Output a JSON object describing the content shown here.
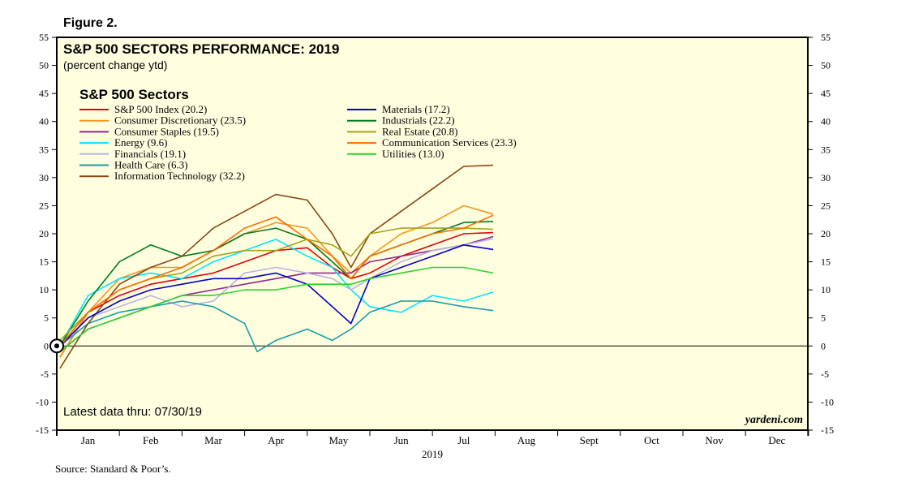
{
  "figure_label": "Figure 2.",
  "source": "Source: Standard & Poor’s.",
  "chart_data": {
    "type": "line",
    "title": "S&P 500 SECTORS PERFORMANCE: 2019",
    "subtitle": "(percent change ytd)",
    "legend_title": "S&P 500 Sectors",
    "latest_note": "Latest data thru: 07/30/19",
    "watermark": "yardeni.com",
    "xlabel": "2019",
    "x_tick_labels": [
      "Jan",
      "Feb",
      "Mar",
      "Apr",
      "May",
      "Jun",
      "Jul",
      "Aug",
      "Sept",
      "Oct",
      "Nov",
      "Dec"
    ],
    "x_range_months": [
      0,
      12
    ],
    "ylim": [
      -15,
      55
    ],
    "y_ticks": [
      -15,
      -10,
      -5,
      0,
      5,
      10,
      15,
      20,
      25,
      30,
      35,
      40,
      45,
      50,
      55
    ],
    "y_tick_labels": [
      "-15",
      "-10",
      "-5",
      "0",
      "5",
      "10",
      "15",
      "20",
      "25",
      "30",
      "35",
      "40",
      "45",
      "50",
      "55"
    ],
    "grid": false,
    "zero_line": true,
    "legend_position": "top-left",
    "plot_background": "#ffffe0",
    "x_unit_note": "x values are months elapsed since Jan 1, 2019",
    "series": [
      {
        "name": "S&P 500 Index (20.2)",
        "color": "#e3000f",
        "x": [
          0.05,
          0.5,
          1.0,
          1.5,
          2.0,
          2.5,
          3.0,
          3.5,
          4.0,
          4.4,
          4.7,
          5.0,
          5.5,
          6.0,
          6.5,
          6.97
        ],
        "y": [
          -2,
          6,
          9,
          11,
          12,
          13,
          15,
          17,
          17.5,
          14,
          12,
          13,
          16,
          18,
          20,
          20.2
        ]
      },
      {
        "name": "Consumer Discretionary (23.5)",
        "color": "#f7941d",
        "x": [
          0.05,
          0.5,
          1.0,
          1.5,
          2.0,
          2.5,
          3.0,
          3.5,
          4.0,
          4.4,
          4.7,
          5.0,
          5.5,
          6.0,
          6.5,
          6.97
        ],
        "y": [
          -2,
          6,
          12,
          14,
          14,
          17,
          20,
          22,
          21,
          16,
          13,
          16,
          20,
          22,
          25,
          23.5
        ]
      },
      {
        "name": "Consumer Staples (19.5)",
        "color": "#92278f",
        "x": [
          0.05,
          0.5,
          1.0,
          1.5,
          2.0,
          2.5,
          3.0,
          3.5,
          4.0,
          4.4,
          4.7,
          5.0,
          5.5,
          6.0,
          6.5,
          6.97
        ],
        "y": [
          -1,
          3,
          5,
          7,
          9,
          10,
          11,
          12,
          13,
          13,
          13,
          15,
          16,
          17,
          18,
          19.5
        ]
      },
      {
        "name": "Energy (9.6)",
        "color": "#00e5ff",
        "x": [
          0.05,
          0.5,
          1.0,
          1.5,
          2.0,
          2.5,
          3.0,
          3.5,
          4.0,
          4.4,
          4.7,
          5.0,
          5.5,
          6.0,
          6.5,
          6.97
        ],
        "y": [
          0,
          9,
          12,
          13,
          12,
          15,
          17,
          19,
          16,
          14,
          10,
          7,
          6,
          9,
          8,
          9.6
        ]
      },
      {
        "name": "Financials (19.1)",
        "color": "#b4b4e6",
        "x": [
          0.05,
          0.5,
          1.0,
          1.5,
          2.0,
          2.5,
          3.0,
          3.5,
          4.0,
          4.4,
          4.7,
          5.0,
          5.5,
          6.0,
          6.5,
          6.97
        ],
        "y": [
          0,
          5,
          7,
          9,
          7,
          8,
          13,
          14,
          13,
          12,
          10,
          12,
          15,
          17,
          18,
          19.1
        ]
      },
      {
        "name": "Health Care (6.3)",
        "color": "#1a9ba8",
        "x": [
          0.05,
          0.5,
          1.0,
          1.5,
          2.0,
          2.5,
          3.0,
          3.2,
          3.5,
          4.0,
          4.4,
          4.7,
          5.0,
          5.5,
          6.0,
          6.5,
          6.97
        ],
        "y": [
          0,
          4,
          6,
          7,
          8,
          7,
          4,
          -1,
          1,
          3,
          1,
          3,
          6,
          8,
          8,
          7,
          6.3
        ]
      },
      {
        "name": "Information Technology (32.2)",
        "color": "#8b4513",
        "x": [
          0.05,
          0.5,
          1.0,
          1.5,
          2.0,
          2.5,
          3.0,
          3.5,
          4.0,
          4.4,
          4.7,
          5.0,
          5.5,
          6.0,
          6.5,
          6.97
        ],
        "y": [
          -4,
          4,
          11,
          14,
          16,
          21,
          24,
          27,
          26,
          20,
          14,
          20,
          24,
          28,
          32,
          32.2
        ]
      },
      {
        "name": "Materials (17.2)",
        "color": "#0000cc",
        "x": [
          0.05,
          0.5,
          1.0,
          1.5,
          2.0,
          2.5,
          3.0,
          3.5,
          4.0,
          4.4,
          4.7,
          5.0,
          5.5,
          6.0,
          6.5,
          6.97
        ],
        "y": [
          0,
          5,
          8,
          10,
          11,
          12,
          12,
          13,
          11,
          7,
          4,
          12,
          14,
          16,
          18,
          17.2
        ]
      },
      {
        "name": "Industrials (22.2)",
        "color": "#007a1f",
        "x": [
          0.05,
          0.5,
          1.0,
          1.5,
          2.0,
          2.5,
          3.0,
          3.5,
          4.0,
          4.4,
          4.7,
          5.0,
          5.5,
          6.0,
          6.5,
          6.97
        ],
        "y": [
          0,
          8,
          15,
          18,
          16,
          17,
          20,
          21,
          19,
          15,
          12,
          16,
          18,
          20,
          22,
          22.2
        ]
      },
      {
        "name": "Real Estate (20.8)",
        "color": "#a3a31a",
        "x": [
          0.05,
          0.5,
          1.0,
          1.5,
          2.0,
          2.5,
          3.0,
          3.5,
          4.0,
          4.4,
          4.7,
          5.0,
          5.5,
          6.0,
          6.5,
          6.97
        ],
        "y": [
          1,
          6,
          10,
          12,
          13,
          16,
          17,
          17,
          19,
          18,
          16,
          20,
          21,
          21,
          21,
          20.8
        ]
      },
      {
        "name": "Communication Services (23.3)",
        "color": "#ff6a00",
        "x": [
          0.05,
          0.5,
          1.0,
          1.5,
          2.0,
          2.5,
          3.0,
          3.5,
          4.0,
          4.4,
          4.7,
          5.0,
          5.5,
          6.0,
          6.5,
          6.97
        ],
        "y": [
          0,
          6,
          10,
          12,
          14,
          17,
          21,
          23,
          19,
          16,
          12,
          16,
          18,
          20,
          21,
          23.3
        ]
      },
      {
        "name": "Utilities (13.0)",
        "color": "#2ed12e",
        "x": [
          0.05,
          0.5,
          1.0,
          1.5,
          2.0,
          2.5,
          3.0,
          3.5,
          4.0,
          4.4,
          4.7,
          5.0,
          5.5,
          6.0,
          6.5,
          6.97
        ],
        "y": [
          -1,
          3,
          5,
          7,
          9,
          9,
          10,
          10,
          11,
          11,
          11,
          12,
          13,
          14,
          14,
          13.0
        ]
      }
    ]
  }
}
